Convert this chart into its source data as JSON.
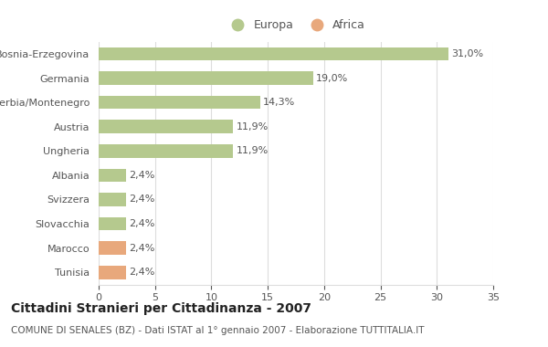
{
  "categories": [
    "Bosnia-Erzegovina",
    "Germania",
    "Serbia/Montenegro",
    "Austria",
    "Ungheria",
    "Albania",
    "Svizzera",
    "Slovacchia",
    "Marocco",
    "Tunisia"
  ],
  "values": [
    31.0,
    19.0,
    14.3,
    11.9,
    11.9,
    2.4,
    2.4,
    2.4,
    2.4,
    2.4
  ],
  "labels": [
    "31,0%",
    "19,0%",
    "14,3%",
    "11,9%",
    "11,9%",
    "2,4%",
    "2,4%",
    "2,4%",
    "2,4%",
    "2,4%"
  ],
  "colors": [
    "#b5c98e",
    "#b5c98e",
    "#b5c98e",
    "#b5c98e",
    "#b5c98e",
    "#b5c98e",
    "#b5c98e",
    "#b5c98e",
    "#e8a87c",
    "#e8a87c"
  ],
  "legend_labels": [
    "Europa",
    "Africa"
  ],
  "legend_colors": [
    "#b5c98e",
    "#e8a87c"
  ],
  "title": "Cittadini Stranieri per Cittadinanza - 2007",
  "subtitle": "COMUNE DI SENALES (BZ) - Dati ISTAT al 1° gennaio 2007 - Elaborazione TUTTITALIA.IT",
  "xlim": [
    0,
    35
  ],
  "xticks": [
    0,
    5,
    10,
    15,
    20,
    25,
    30,
    35
  ],
  "bg_color": "#ffffff",
  "grid_color": "#dddddd",
  "bar_height": 0.55,
  "title_fontsize": 10,
  "subtitle_fontsize": 7.5,
  "tick_fontsize": 8,
  "label_fontsize": 8,
  "legend_fontsize": 9,
  "text_color": "#555555",
  "title_color": "#222222"
}
